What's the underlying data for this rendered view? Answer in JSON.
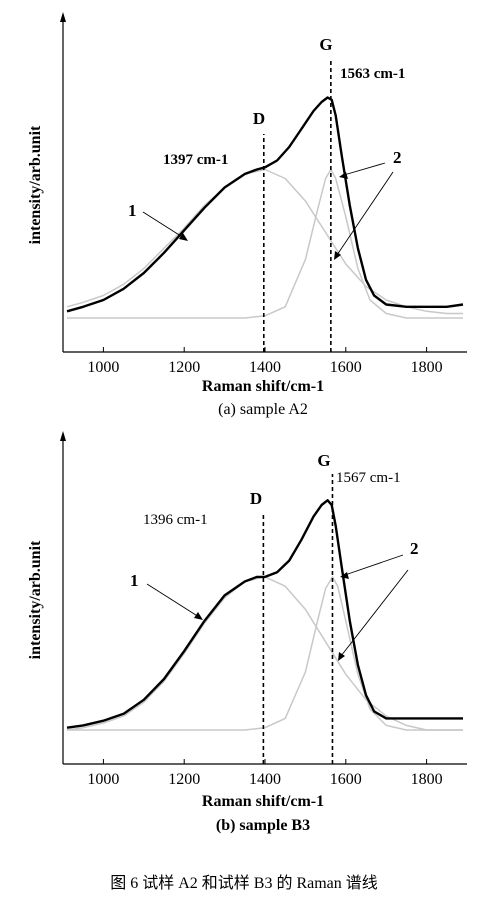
{
  "figure": {
    "caption": "图 6   试样 A2 和试样 B3 的 Raman 谱线"
  },
  "chart_data": [
    {
      "type": "line",
      "subtitle": "(a) sample A2",
      "xlabel": "Raman shift/cm-1",
      "ylabel": "intensity/arb.unit",
      "xlim": [
        900,
        1900
      ],
      "xticks": [
        "1000",
        "1200",
        "1400",
        "1600",
        "1800"
      ],
      "peaks": [
        {
          "label": "D",
          "x": 1397,
          "value_label": "1397 cm-1"
        },
        {
          "label": "G",
          "x": 1563,
          "value_label": "1563 cm-1"
        }
      ],
      "curve_labels": [
        "1",
        "2"
      ],
      "series": [
        {
          "id": "measured",
          "color": "#000000",
          "x": [
            910,
            950,
            1000,
            1050,
            1100,
            1150,
            1200,
            1250,
            1300,
            1350,
            1380,
            1400,
            1430,
            1460,
            1490,
            1520,
            1540,
            1555,
            1565,
            1575,
            1590,
            1610,
            1630,
            1650,
            1670,
            1700,
            1750,
            1800,
            1850,
            1890
          ],
          "y": [
            0.03,
            0.05,
            0.08,
            0.13,
            0.2,
            0.29,
            0.39,
            0.49,
            0.58,
            0.64,
            0.66,
            0.67,
            0.7,
            0.76,
            0.84,
            0.92,
            0.96,
            0.98,
            0.97,
            0.9,
            0.72,
            0.5,
            0.31,
            0.17,
            0.1,
            0.06,
            0.05,
            0.05,
            0.05,
            0.06
          ]
        },
        {
          "id": "fit-1",
          "color": "#c8c8c8",
          "x": [
            910,
            950,
            1000,
            1050,
            1100,
            1150,
            1200,
            1250,
            1300,
            1350,
            1400,
            1450,
            1500,
            1550,
            1600,
            1650,
            1700,
            1750,
            1800,
            1850,
            1890
          ],
          "y": [
            0.05,
            0.07,
            0.1,
            0.15,
            0.22,
            0.31,
            0.4,
            0.5,
            0.58,
            0.64,
            0.66,
            0.62,
            0.52,
            0.38,
            0.24,
            0.14,
            0.08,
            0.05,
            0.03,
            0.02,
            0.02
          ]
        },
        {
          "id": "fit-2",
          "color": "#c8c8c8",
          "x": [
            910,
            1000,
            1100,
            1200,
            1300,
            1350,
            1400,
            1450,
            1500,
            1530,
            1550,
            1563,
            1575,
            1600,
            1630,
            1660,
            1700,
            1750,
            1800,
            1890
          ],
          "y": [
            0.0,
            0.0,
            0.0,
            0.0,
            0.0,
            0.0,
            0.01,
            0.05,
            0.26,
            0.48,
            0.62,
            0.66,
            0.62,
            0.45,
            0.22,
            0.08,
            0.02,
            0.0,
            0.0,
            0.0
          ]
        }
      ]
    },
    {
      "type": "line",
      "subtitle": "(b) sample B3",
      "xlabel": "Raman shift/cm-1",
      "ylabel": "intensity/arb.unit",
      "xlim": [
        900,
        1900
      ],
      "xticks": [
        "1000",
        "1200",
        "1400",
        "1600",
        "1800"
      ],
      "peaks": [
        {
          "label": "D",
          "x": 1396,
          "value_label": "1396 cm-1"
        },
        {
          "label": "G",
          "x": 1567,
          "value_label": "1567 cm-1"
        }
      ],
      "curve_labels": [
        "1",
        "2"
      ],
      "series": [
        {
          "id": "measured",
          "color": "#000000",
          "x": [
            910,
            950,
            1000,
            1050,
            1100,
            1150,
            1200,
            1250,
            1300,
            1350,
            1380,
            1400,
            1430,
            1460,
            1490,
            1520,
            1540,
            1555,
            1565,
            1575,
            1590,
            1610,
            1630,
            1650,
            1670,
            1700,
            1750,
            1800,
            1850,
            1890
          ],
          "y": [
            0.01,
            0.02,
            0.04,
            0.07,
            0.13,
            0.22,
            0.34,
            0.47,
            0.58,
            0.64,
            0.66,
            0.66,
            0.68,
            0.73,
            0.82,
            0.92,
            0.97,
            0.99,
            0.97,
            0.88,
            0.7,
            0.47,
            0.28,
            0.15,
            0.08,
            0.05,
            0.05,
            0.05,
            0.05,
            0.05
          ]
        },
        {
          "id": "fit-1",
          "color": "#c8c8c8",
          "x": [
            910,
            950,
            1000,
            1050,
            1100,
            1150,
            1200,
            1250,
            1300,
            1350,
            1400,
            1450,
            1500,
            1550,
            1600,
            1650,
            1700,
            1750,
            1800,
            1850,
            1890
          ],
          "y": [
            0.0,
            0.01,
            0.03,
            0.06,
            0.12,
            0.21,
            0.33,
            0.46,
            0.57,
            0.64,
            0.66,
            0.62,
            0.52,
            0.38,
            0.24,
            0.13,
            0.06,
            0.02,
            0.0,
            0.0,
            0.0
          ]
        },
        {
          "id": "fit-2",
          "color": "#c8c8c8",
          "x": [
            910,
            1000,
            1100,
            1200,
            1300,
            1350,
            1400,
            1450,
            1500,
            1530,
            1550,
            1567,
            1580,
            1600,
            1630,
            1660,
            1700,
            1750,
            1800,
            1890
          ],
          "y": [
            0.0,
            0.0,
            0.0,
            0.0,
            0.0,
            0.0,
            0.01,
            0.05,
            0.25,
            0.47,
            0.61,
            0.66,
            0.62,
            0.47,
            0.24,
            0.09,
            0.02,
            0.0,
            0.0,
            0.0
          ]
        }
      ]
    }
  ]
}
